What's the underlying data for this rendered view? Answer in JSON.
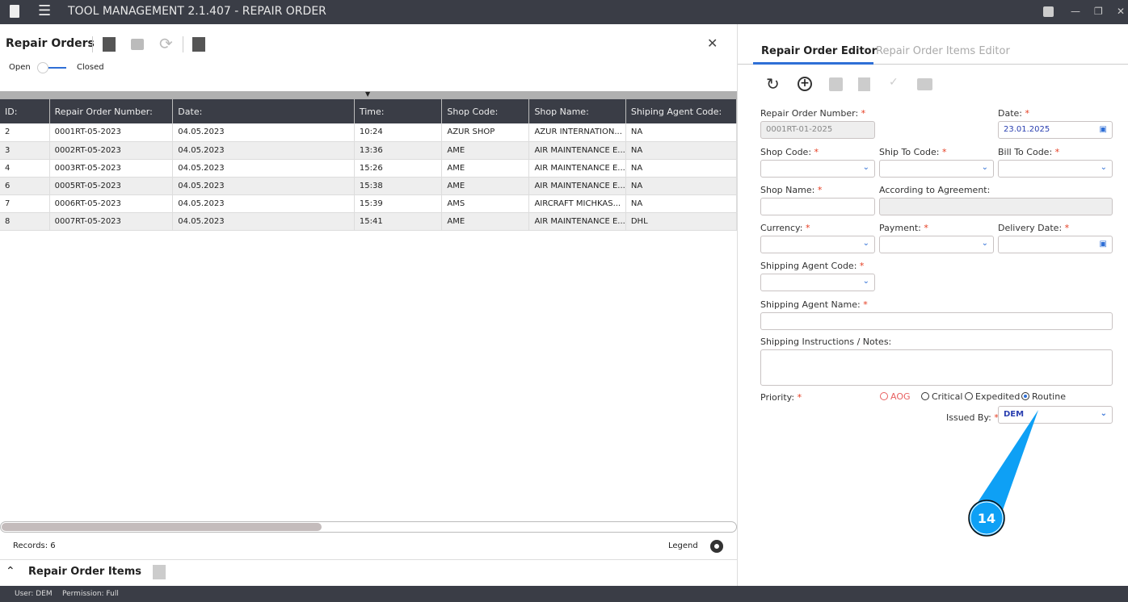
{
  "app": {
    "title": "TOOL MANAGEMENT 2.1.407 - REPAIR ORDER"
  },
  "left": {
    "title": "Repair Orders",
    "toggle": {
      "left_label": "Open",
      "right_label": "Closed",
      "state": "open"
    },
    "columns": [
      "ID:",
      "Repair Order Number:",
      "Date:",
      "Time:",
      "Shop Code:",
      "Shop Name:",
      "Shiping Agent Code:"
    ],
    "rows": [
      [
        "2",
        "0001RT-05-2023",
        "04.05.2023",
        "10:24",
        "AZUR SHOP",
        "AZUR INTERNATION...",
        "NA"
      ],
      [
        "3",
        "0002RT-05-2023",
        "04.05.2023",
        "13:36",
        "AME",
        "AIR MAINTENANCE E...",
        "NA"
      ],
      [
        "4",
        "0003RT-05-2023",
        "04.05.2023",
        "15:26",
        "AME",
        "AIR MAINTENANCE E...",
        "NA"
      ],
      [
        "6",
        "0005RT-05-2023",
        "04.05.2023",
        "15:38",
        "AME",
        "AIR MAINTENANCE E...",
        "NA"
      ],
      [
        "7",
        "0006RT-05-2023",
        "04.05.2023",
        "15:39",
        "AMS",
        "AIRCRAFT MICHKAS...",
        "NA"
      ],
      [
        "8",
        "0007RT-05-2023",
        "04.05.2023",
        "15:41",
        "AME",
        "AIR MAINTENANCE E...",
        "DHL"
      ]
    ],
    "records": "Records: 6",
    "legend": "Legend",
    "items_title": "Repair Order Items"
  },
  "editor": {
    "tabs": [
      {
        "label": "Repair Order Editor",
        "active": true
      },
      {
        "label": "Repair Order Items Editor",
        "active": false
      }
    ],
    "fields": {
      "ro_number": {
        "label": "Repair Order Number:",
        "value": "0001RT-01-2025"
      },
      "date": {
        "label": "Date:",
        "value": "23.01.2025"
      },
      "shop_code": {
        "label": "Shop Code:",
        "value": ""
      },
      "ship_to": {
        "label": "Ship To Code:",
        "value": ""
      },
      "bill_to": {
        "label": "Bill To Code:",
        "value": ""
      },
      "shop_name": {
        "label": "Shop Name:",
        "value": ""
      },
      "agreement": {
        "label": "According to Agreement:",
        "value": ""
      },
      "currency": {
        "label": "Currency:",
        "value": ""
      },
      "payment": {
        "label": "Payment:",
        "value": ""
      },
      "delivery": {
        "label": "Delivery Date:",
        "value": ""
      },
      "agent_code": {
        "label": "Shipping Agent Code:",
        "value": ""
      },
      "agent_name": {
        "label": "Shipping Agent Name:",
        "value": ""
      },
      "notes": {
        "label": "Shipping Instructions / Notes:",
        "value": ""
      },
      "priority": {
        "label": "Priority:",
        "options": [
          "AOG",
          "Critical",
          "Expedited",
          "Routine"
        ],
        "selected": "Routine"
      },
      "issued_by": {
        "label": "Issued By:",
        "value": "DEM"
      }
    },
    "required_mark": "*"
  },
  "callout": {
    "number": "14",
    "color": "#0ea0f5"
  },
  "status": {
    "user": "User: DEM",
    "permission": "Permission: Full"
  }
}
